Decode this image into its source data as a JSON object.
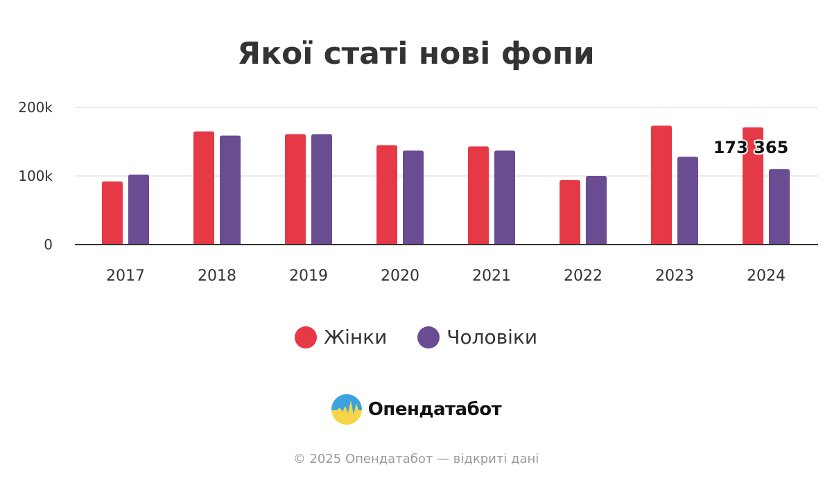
{
  "chart_data": {
    "type": "bar",
    "title": "Якої статі нові фопи",
    "categories": [
      "2017",
      "2018",
      "2019",
      "2020",
      "2021",
      "2022",
      "2023",
      "2024"
    ],
    "series": [
      {
        "name": "Жінки",
        "color": "#E63946",
        "values": [
          92000,
          165000,
          161000,
          145000,
          143000,
          94000,
          173365,
          171000
        ]
      },
      {
        "name": "Чоловіки",
        "color": "#6A4C93",
        "values": [
          102000,
          159000,
          161000,
          137000,
          137000,
          100000,
          128000,
          110000
        ]
      }
    ],
    "ylim": [
      0,
      200000
    ],
    "yticks": [
      0,
      100000,
      200000
    ],
    "ytick_labels": [
      "0",
      "100k",
      "200k"
    ],
    "xlabel": "",
    "ylabel": "",
    "grid": true,
    "legend_position": "bottom",
    "data_labels": [
      {
        "text": "173 365"
      }
    ]
  },
  "legend": {
    "items": [
      {
        "label": "Жінки",
        "color": "#E63946"
      },
      {
        "label": "Чоловіки",
        "color": "#6A4C93"
      }
    ]
  },
  "brand": {
    "name": "Опендатабот",
    "logo_icon": "opendatabot-logo-icon"
  },
  "footer": {
    "text": "© 2025 Опендатабот — відкриті дані"
  }
}
